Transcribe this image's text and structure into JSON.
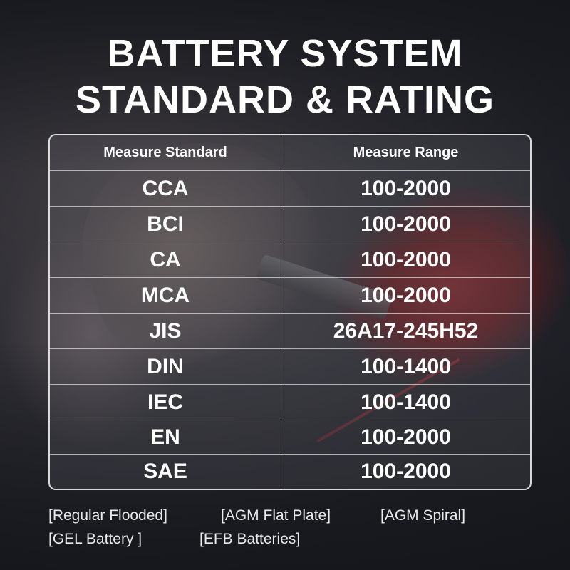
{
  "title_line1": "BATTERY SYSTEM",
  "title_line2": "STANDARD & RATING",
  "table": {
    "headers": [
      "Measure Standard",
      "Measure Range"
    ],
    "rows": [
      {
        "standard": "CCA",
        "range": "100-2000"
      },
      {
        "standard": "BCI",
        "range": "100-2000"
      },
      {
        "standard": "CA",
        "range": "100-2000"
      },
      {
        "standard": "MCA",
        "range": "100-2000"
      },
      {
        "standard": "JIS",
        "range": "26A17-245H52"
      },
      {
        "standard": "DIN",
        "range": "100-1400"
      },
      {
        "standard": "IEC",
        "range": "100-1400"
      },
      {
        "standard": "EN",
        "range": "100-2000"
      },
      {
        "standard": "SAE",
        "range": "100-2000"
      }
    ]
  },
  "battery_types": [
    "[Regular Flooded]",
    "[AGM Flat Plate]",
    "[AGM Spiral]",
    "[GEL Battery ]",
    "[EFB Batteries]"
  ]
}
